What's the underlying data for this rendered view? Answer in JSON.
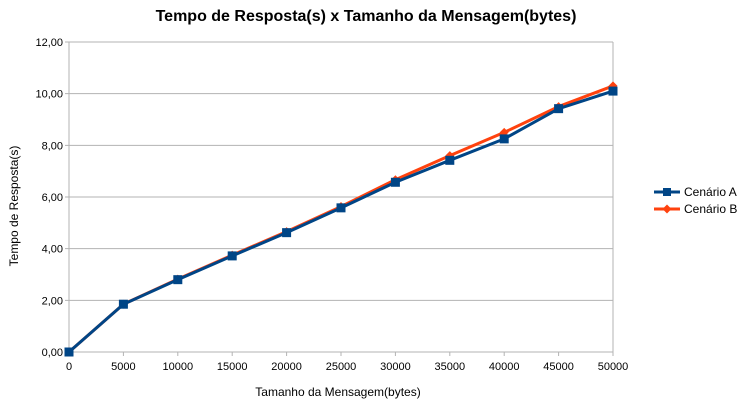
{
  "chart_data": {
    "type": "line",
    "title": "Tempo de Resposta(s) x Tamanho da Mensagem(bytes)",
    "xlabel": "Tamanho da Mensagem(bytes)",
    "ylabel": "Tempo de Resposta(s)",
    "x": [
      0,
      5000,
      10000,
      15000,
      20000,
      25000,
      30000,
      35000,
      40000,
      45000,
      50000
    ],
    "ylim": [
      0,
      12
    ],
    "yticks": [
      "0,00",
      "2,00",
      "4,00",
      "6,00",
      "8,00",
      "10,00",
      "12,00"
    ],
    "xticks": [
      "0",
      "5000",
      "10000",
      "15000",
      "20000",
      "25000",
      "30000",
      "35000",
      "40000",
      "45000",
      "50000"
    ],
    "grid": true,
    "legend_position": "right",
    "series": [
      {
        "name": "Cenário A",
        "color": "#004586",
        "marker": "square",
        "values": [
          0.0,
          1.85,
          2.8,
          3.72,
          4.62,
          5.58,
          6.57,
          7.42,
          8.25,
          9.42,
          10.1
        ]
      },
      {
        "name": "Cenário B",
        "color": "#ff420e",
        "marker": "diamond",
        "values": [
          0.0,
          1.85,
          2.82,
          3.75,
          4.66,
          5.63,
          6.67,
          7.6,
          8.5,
          9.5,
          10.3
        ]
      }
    ]
  }
}
